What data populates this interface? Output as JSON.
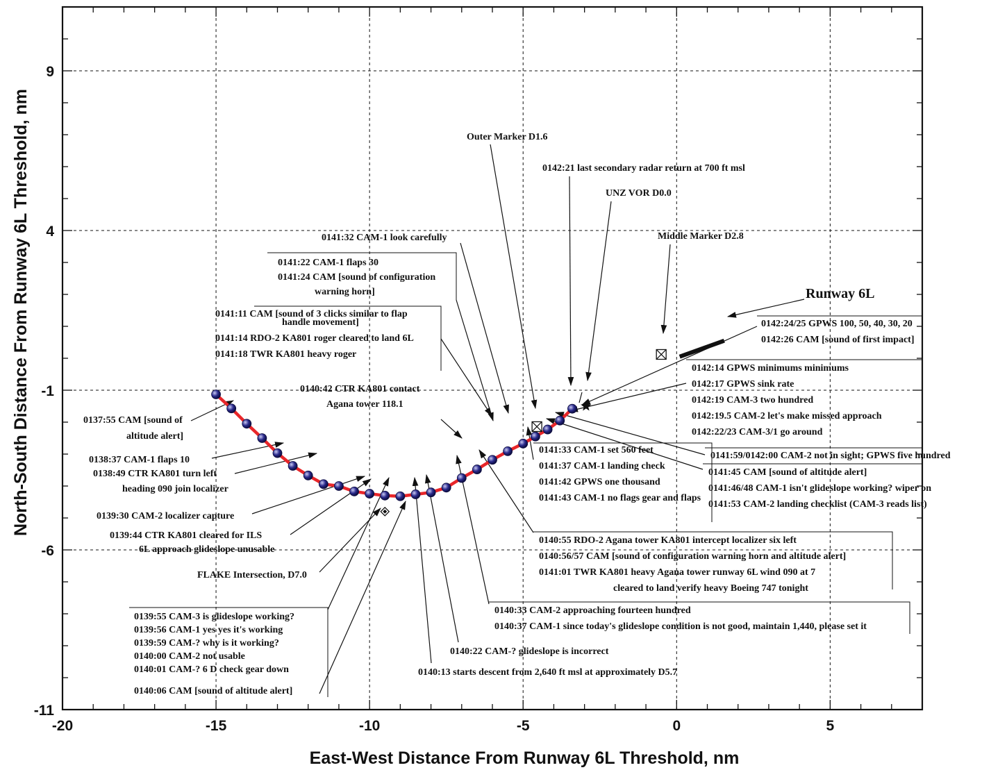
{
  "chart_data": {
    "type": "scatter",
    "xlabel": "East-West Distance From Runway 6L Threshold, nm",
    "ylabel": "North-South Distance From Runway 6L Threshold, nm",
    "xlim": [
      -20,
      8
    ],
    "ylim": [
      -11,
      11
    ],
    "xticks": [
      "-20",
      "-15",
      "-10",
      "-5",
      "0",
      "5"
    ],
    "yticks": [
      "9",
      "4",
      "-1",
      "-6",
      "-11"
    ],
    "grid": true,
    "series": [
      {
        "name": "",
        "color": "#e8262a",
        "marker_color": "#2a2a8c",
        "x": [
          -15.0,
          -14.5,
          -14.0,
          -13.5,
          -13.0,
          -12.5,
          -12.0,
          -11.5,
          -11.0,
          -10.5,
          -10.0,
          -9.5,
          -9.0,
          -8.5,
          -8.0,
          -7.5,
          -7.0,
          -6.5,
          -6.0,
          -5.5,
          -5.0,
          -4.6,
          -4.2,
          -3.8,
          -3.4
        ],
        "y": [
          -1.13,
          -1.57,
          -2.05,
          -2.5,
          -2.97,
          -3.37,
          -3.67,
          -3.94,
          -4.0,
          -4.17,
          -4.24,
          -4.3,
          -4.32,
          -4.26,
          -4.2,
          -4.05,
          -3.75,
          -3.48,
          -3.18,
          -2.91,
          -2.67,
          -2.45,
          -2.23,
          -1.95,
          -1.58
        ]
      }
    ],
    "landmarks": {
      "outer_marker_x": -4.55,
      "outer_marker_y": -2.14,
      "vor_x": -2.95,
      "vor_y": -1.5,
      "middle_marker_x": -0.5,
      "middle_marker_y": 0.12,
      "flake_x": -9.5,
      "flake_y": -4.8,
      "runway": [
        [
          0.1,
          0.05
        ],
        [
          1.55,
          0.55
        ]
      ]
    },
    "runway_label": "Runway 6L",
    "annotations": [
      {
        "id": "outer-marker",
        "lines": [
          "Outer Marker D1.6"
        ]
      },
      {
        "id": "last-radar",
        "lines": [
          "0142:21 last secondary radar return at 700 ft msl"
        ]
      },
      {
        "id": "unz-vor",
        "lines": [
          "UNZ VOR D0.0"
        ]
      },
      {
        "id": "middle-marker",
        "lines": [
          "Middle Marker D2.8"
        ]
      },
      {
        "id": "look-carefully",
        "lines": [
          "0141:32 CAM-1 look carefully"
        ]
      },
      {
        "id": "flaps-30",
        "lines": [
          "0141:22 CAM-1 flaps 30",
          "0141:24 CAM [sound of configuration",
          "warning horn]"
        ]
      },
      {
        "id": "three-clicks",
        "lines": [
          "0141:11 CAM [sound of 3 clicks similar to flap",
          "handle movement]",
          "0141:14 RDO-2 KA801 roger cleared to land 6L",
          "0141:18 TWR KA801 heavy roger"
        ]
      },
      {
        "id": "contact-tower",
        "lines": [
          "0140:42  CTR  KA801 contact",
          "Agana tower 118.1"
        ]
      },
      {
        "id": "gpws-100",
        "lines": [
          "0142:24/25 GPWS 100, 50, 40, 30, 20",
          "0142:26 CAM [sound of first impact]"
        ]
      },
      {
        "id": "minimums",
        "lines": [
          "0142:14 GPWS minimums minimums",
          "0142:17 GPWS sink rate",
          "0142:19 CAM-3 two hundred",
          "0142:19.5 CAM-2 let's make missed approach",
          "0142:22/23 CAM-3/1 go around"
        ]
      },
      {
        "id": "altitude-alert-1",
        "lines": [
          "0137:55 CAM [sound of",
          "altitude alert]"
        ]
      },
      {
        "id": "flaps-10",
        "lines": [
          "0138:37  CAM-1  flaps 10"
        ]
      },
      {
        "id": "turn-left",
        "lines": [
          "0138:49 CTR  KA801 turn left",
          "heading 090 join localizer"
        ]
      },
      {
        "id": "localizer-capture",
        "lines": [
          "0139:30 CAM-2 localizer capture"
        ]
      },
      {
        "id": "cleared-ils",
        "lines": [
          "0139:44  CTR  KA801 cleared for ILS",
          "6L approach glideslope unusable"
        ]
      },
      {
        "id": "flake",
        "lines": [
          "FLAKE Intersection, D7.0"
        ]
      },
      {
        "id": "not-in-sight",
        "lines": [
          "0141:59/0142:00 CAM-2 not in sight; GPWS five hundred"
        ]
      },
      {
        "id": "altitude-alert-2",
        "lines": [
          "0141:45 CAM [sound of altitude alert]",
          "0141:46/48 CAM-1 isn't glideslope working? wiper on",
          "0141:53 CAM-2 landing checklist (CAM-3 reads list)"
        ]
      },
      {
        "id": "set-560",
        "lines": [
          "0141:33 CAM-1 set 560 feet",
          "0141:37 CAM-1 landing check",
          "0141:42 GPWS one thousand",
          "0141:43 CAM-1 no flags gear and flaps"
        ]
      },
      {
        "id": "intercept-localizer",
        "lines": [
          "0140:55 RDO-2 Agana tower KA801 intercept localizer six left",
          "0140:56/57 CAM [sound of configuration warning horn and altitude alert]",
          "0141:01 TWR KA801 heavy Agana tower runway 6L wind 090 at 7",
          "cleared to land verify heavy Boeing 747 tonight"
        ]
      },
      {
        "id": "fourteen-hundred",
        "lines": [
          "0140:33 CAM-2 approaching fourteen hundred",
          "0140:37 CAM-1 since today's glideslope condition is not good, maintain 1,440, please set it"
        ]
      },
      {
        "id": "glideslope-incorrect",
        "lines": [
          "0140:22 CAM-? glideslope is incorrect"
        ]
      },
      {
        "id": "starts-descent",
        "lines": [
          "0140:13 starts descent from 2,640 ft msl at approximately D5.7"
        ]
      },
      {
        "id": "glideslope-working",
        "lines": [
          "0139:55  CAM-3  is glideslope working?",
          "0139:56  CAM-1  yes yes it's working",
          "0139:59  CAM-?  why is it working?",
          "0140:00  CAM-2  not usable",
          "0140:01  CAM-?  6 D check gear down"
        ]
      },
      {
        "id": "altitude-alert-3",
        "lines": [
          "0140:06  CAM  [sound of altitude alert]"
        ]
      }
    ]
  }
}
